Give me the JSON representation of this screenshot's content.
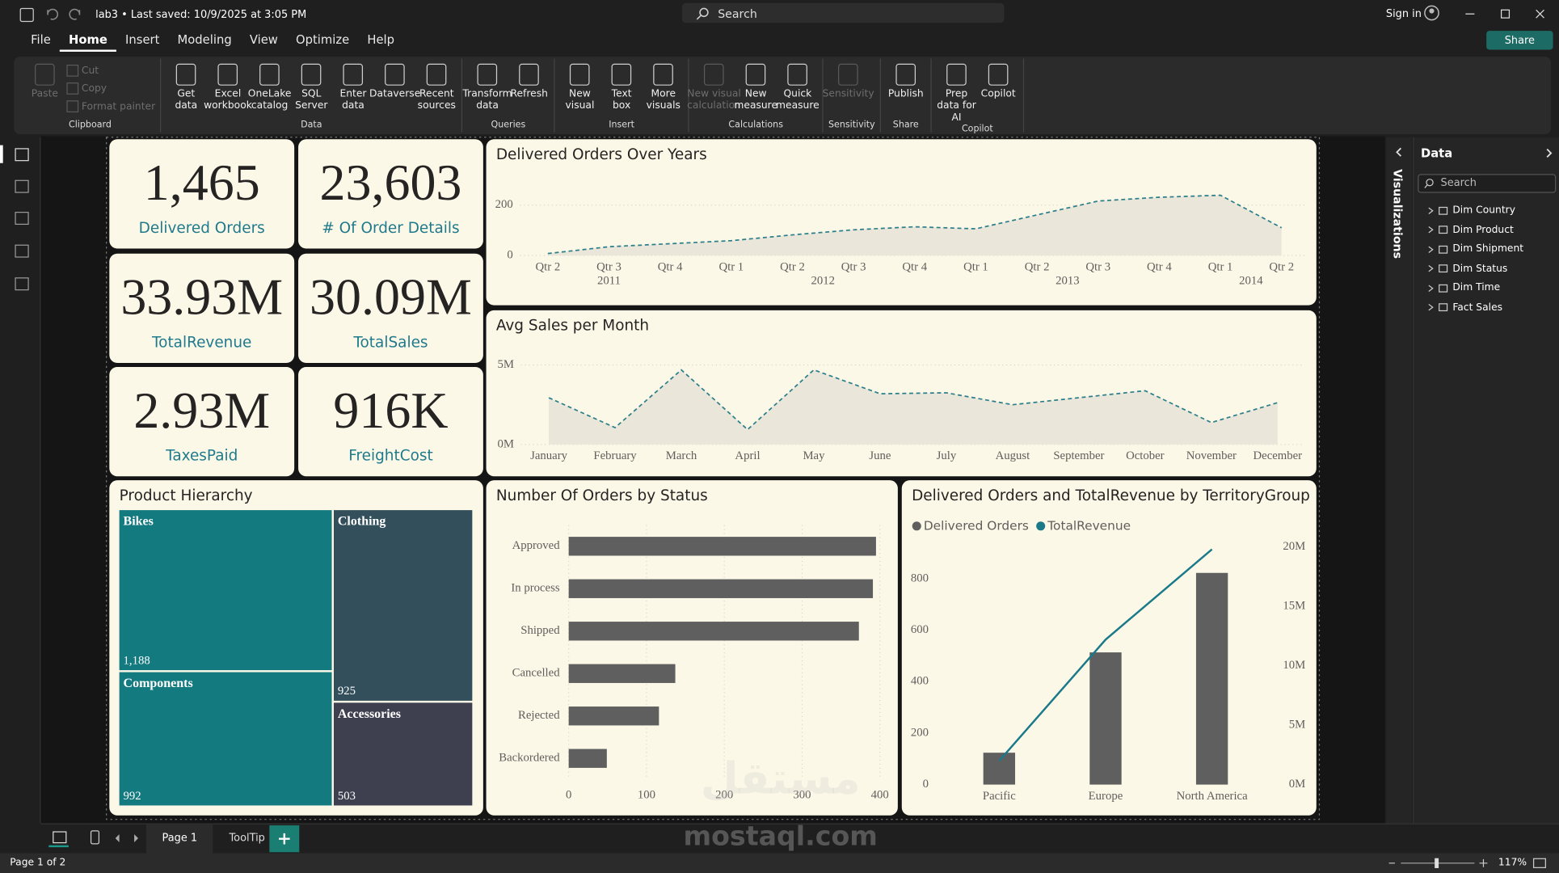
{
  "titlebar": {
    "title": "lab3 • Last saved: 10/9/2025 at 3:05 PM",
    "search": "Search",
    "sign_in": "Sign in"
  },
  "menu": [
    "File",
    "Home",
    "Insert",
    "Modeling",
    "View",
    "Optimize",
    "Help"
  ],
  "active_tab": "Home",
  "share": "Share",
  "ribbon": [
    {
      "label": "Clipboard",
      "items": [
        {
          "label": "Paste",
          "disabled": true
        },
        {
          "label": "Cut",
          "disabled": true,
          "small": true
        },
        {
          "label": "Copy",
          "disabled": true,
          "small": true
        },
        {
          "label": "Format painter",
          "disabled": true,
          "small": true
        }
      ]
    },
    {
      "label": "Data",
      "items": [
        {
          "label": "Get data"
        },
        {
          "label": "Excel workbook"
        },
        {
          "label": "OneLake catalog"
        },
        {
          "label": "SQL Server"
        },
        {
          "label": "Enter data"
        },
        {
          "label": "Dataverse"
        },
        {
          "label": "Recent sources"
        }
      ]
    },
    {
      "label": "Queries",
      "items": [
        {
          "label": "Transform data"
        },
        {
          "label": "Refresh"
        }
      ]
    },
    {
      "label": "Insert",
      "items": [
        {
          "label": "New visual"
        },
        {
          "label": "Text box"
        },
        {
          "label": "More visuals"
        }
      ]
    },
    {
      "label": "Calculations",
      "items": [
        {
          "label": "New visual calculation",
          "disabled": true
        },
        {
          "label": "New measure"
        },
        {
          "label": "Quick measure"
        }
      ]
    },
    {
      "label": "Sensitivity",
      "items": [
        {
          "label": "Sensitivity",
          "disabled": true
        }
      ]
    },
    {
      "label": "Share",
      "items": [
        {
          "label": "Publish"
        }
      ]
    },
    {
      "label": "Copilot",
      "items": [
        {
          "label": "Prep data for AI"
        },
        {
          "label": "Copilot"
        }
      ]
    }
  ],
  "cards": [
    {
      "value": "1,465",
      "label": "Delivered Orders"
    },
    {
      "value": "23,603",
      "label": "# Of Order Details"
    },
    {
      "value": "33.93M",
      "label": "TotalRevenue"
    },
    {
      "value": "30.09M",
      "label": "TotalSales"
    },
    {
      "value": "2.93M",
      "label": "TaxesPaid"
    },
    {
      "value": "916K",
      "label": "FreightCost"
    }
  ],
  "charts": [
    {
      "type": "area",
      "title": "Delivered Orders Over Years",
      "groups": [
        {
          "name": "2011",
          "categories": [
            "Qtr 2",
            "Qtr 3",
            "Qtr 4"
          ],
          "values": [
            8,
            35,
            47
          ]
        },
        {
          "name": "2012",
          "categories": [
            "Qtr 1",
            "Qtr 2",
            "Qtr 3",
            "Qtr 4"
          ],
          "values": [
            59,
            82,
            102,
            114
          ]
        },
        {
          "name": "2013",
          "categories": [
            "Qtr 1",
            "Qtr 2",
            "Qtr 3",
            "Qtr 4"
          ],
          "values": [
            106,
            161,
            216,
            231
          ]
        },
        {
          "name": "2014",
          "categories": [
            "Qtr 1",
            "Qtr 2"
          ],
          "values": [
            239,
            110
          ]
        }
      ],
      "ylim": [
        0,
        260
      ],
      "yticks": [
        0,
        200
      ],
      "color": "#2a7f8a",
      "fill": "#ebe6da",
      "grid": true
    },
    {
      "type": "area",
      "title": "Avg Sales per Month",
      "categories": [
        "January",
        "February",
        "March",
        "April",
        "May",
        "June",
        "July",
        "August",
        "September",
        "October",
        "November",
        "December"
      ],
      "values": [
        2940000,
        1060000,
        4690000,
        940000,
        4690000,
        3190000,
        3250000,
        2500000,
        2940000,
        3380000,
        1380000,
        2630000
      ],
      "ylim": [
        0,
        5750000
      ],
      "yticks": [
        {
          "value": 0,
          "label": "0M"
        },
        {
          "value": 5000000,
          "label": "5M"
        }
      ],
      "color": "#2a7f8a",
      "fill": "#ebe6da",
      "grid": true
    },
    {
      "type": "treemap",
      "title": "Product Hierarchy",
      "items": [
        {
          "name": "Bikes",
          "value": 1188,
          "value_label": "1,188",
          "color": "#137a80"
        },
        {
          "name": "Clothing",
          "value": 925,
          "color": "#334f5c"
        },
        {
          "name": "Components",
          "value": 992,
          "color": "#137a80"
        },
        {
          "name": "Accessories",
          "value": 503,
          "color": "#3e4050"
        }
      ]
    },
    {
      "type": "hbar",
      "title": "Number Of Orders by Status",
      "categories": [
        "Approved",
        "In process",
        "Shipped",
        "Cancelled",
        "Rejected",
        "Backordered"
      ],
      "values": [
        395,
        391,
        373,
        137,
        116,
        49
      ],
      "xlim": [
        0,
        400
      ],
      "xticks": [
        0,
        100,
        200,
        300,
        400
      ],
      "color": "#5f5f5f",
      "grid": true
    },
    {
      "type": "combo",
      "title": "Delivered Orders and TotalRevenue by TerritoryGroup",
      "categories": [
        "Pacific",
        "Europe",
        "North America"
      ],
      "series": [
        {
          "name": "Delivered Orders",
          "type": "bar",
          "color": "#5f5f5f",
          "values": [
            124,
            514,
            823
          ]
        },
        {
          "name": "TotalRevenue",
          "type": "line",
          "axis": "y2",
          "color": "#1a7a8a",
          "values": [
            2000000,
            12200000,
            19800000
          ]
        }
      ],
      "ylim": [
        0,
        924
      ],
      "yticks": [
        0,
        200,
        400,
        600,
        800
      ],
      "y2lim": [
        0,
        20000000
      ],
      "y2ticks": [
        {
          "value": 0,
          "label": "0M"
        },
        {
          "value": 5000000,
          "label": "5M"
        },
        {
          "value": 10000000,
          "label": "10M"
        },
        {
          "value": 15000000,
          "label": "15M"
        },
        {
          "value": 20000000,
          "label": "20M"
        }
      ]
    }
  ],
  "data_pane": {
    "title": "Data",
    "search": "Search",
    "tables": [
      "Dim Country",
      "Dim Product",
      "Dim Shipment",
      "Dim Status",
      "Dim Time",
      "Fact Sales"
    ]
  },
  "visualizations": "Visualizations",
  "pages": [
    "Page 1",
    "ToolTip"
  ],
  "active_page": "Page 1",
  "status": {
    "page": "Page 1 of 2",
    "zoom": "117%"
  },
  "watermark": {
    "arabic": "مستقل",
    "latin": "mostaql.com"
  }
}
